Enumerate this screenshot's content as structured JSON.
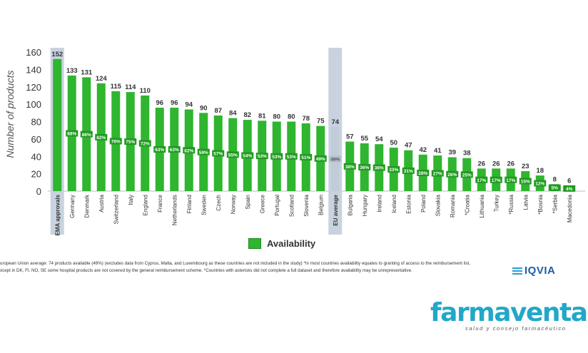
{
  "chart_data": {
    "type": "bar",
    "ylabel": "Number of products",
    "ylim": [
      0,
      160
    ],
    "yticks": [
      0,
      20,
      40,
      60,
      80,
      100,
      120,
      140,
      160
    ],
    "legend": "Availability",
    "legend_position": "bottom-center",
    "grid": false,
    "colors": {
      "bar": "#2fb52f",
      "highlight": "#c9d3df",
      "label_box": "#1f9a1f"
    },
    "categories": [
      "EMA approvals",
      "Germany",
      "Denmark",
      "Austria",
      "Switzerland",
      "Italy",
      "England",
      "France",
      "Netherlands",
      "Finland",
      "Sweden",
      "Czech",
      "Norway",
      "Spain",
      "Greece",
      "Portugal",
      "Scotland",
      "Slovenia",
      "Belgium",
      "EU average",
      "Bulgaria",
      "Hungary",
      "Ireland",
      "Iceland",
      "Estonia",
      "Poland",
      "Slovakia",
      "Romania",
      "*Croatia",
      "Lithuania",
      "Turkey",
      "*Russia",
      "Latvia",
      "*Bosnia",
      "*Serbia",
      "Macedonia"
    ],
    "values": [
      152,
      133,
      131,
      124,
      115,
      114,
      110,
      96,
      96,
      94,
      90,
      87,
      84,
      82,
      81,
      80,
      80,
      78,
      75,
      74,
      57,
      55,
      54,
      50,
      47,
      42,
      41,
      39,
      38,
      26,
      26,
      26,
      23,
      18,
      8,
      6
    ],
    "percent_labels": [
      "",
      "88%",
      "86%",
      "82%",
      "76%",
      "75%",
      "72%",
      "63%",
      "63%",
      "62%",
      "59%",
      "57%",
      "55%",
      "54%",
      "53%",
      "53%",
      "53%",
      "51%",
      "49%",
      "49%",
      "38%",
      "36%",
      "36%",
      "33%",
      "31%",
      "28%",
      "27%",
      "26%",
      "25%",
      "17%",
      "17%",
      "17%",
      "15%",
      "12%",
      "5%",
      "4%"
    ],
    "highlighted": [
      "EMA approvals",
      "EU average"
    ]
  },
  "footnote": {
    "line1": "uropean Union average: 74 products available (49%) (excludes data from Cyprus, Malta, and Luxembourg as these countries are not included in the study) *In most countries availability equates to granting of access to the reimbursement list,",
    "line2": "xcept in DK, FI, NO, SE some hospital products are not covered by the general reimbursement scheme. *Countries with asterisks did not complete a full dataset and therefore availability may be unrepresentative."
  },
  "branding": {
    "iqvia": "IQVIA",
    "farmaventas": "farmaventas",
    "farmaventas_tagline": "salud y consejo farmacéutico"
  }
}
